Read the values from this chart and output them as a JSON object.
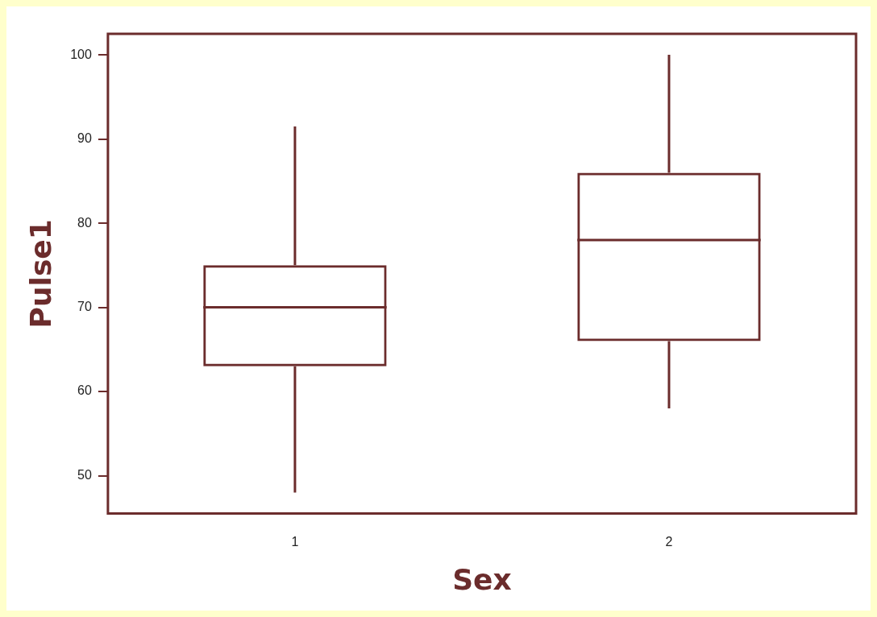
{
  "chart_data": {
    "type": "box",
    "xlabel": "Sex",
    "ylabel": "Pulse1",
    "categories": [
      "1",
      "2"
    ],
    "boxes": [
      {
        "low": 48,
        "q1": 63,
        "median": 70,
        "q3": 75,
        "high": 91.5
      },
      {
        "low": 58,
        "q1": 66,
        "median": 78,
        "q3": 86,
        "high": 100
      }
    ],
    "color": "#6b2c2c",
    "ylim": [
      45.5,
      102.5
    ],
    "yticks": [
      50,
      60,
      70,
      80,
      90,
      100
    ],
    "grid": false
  }
}
